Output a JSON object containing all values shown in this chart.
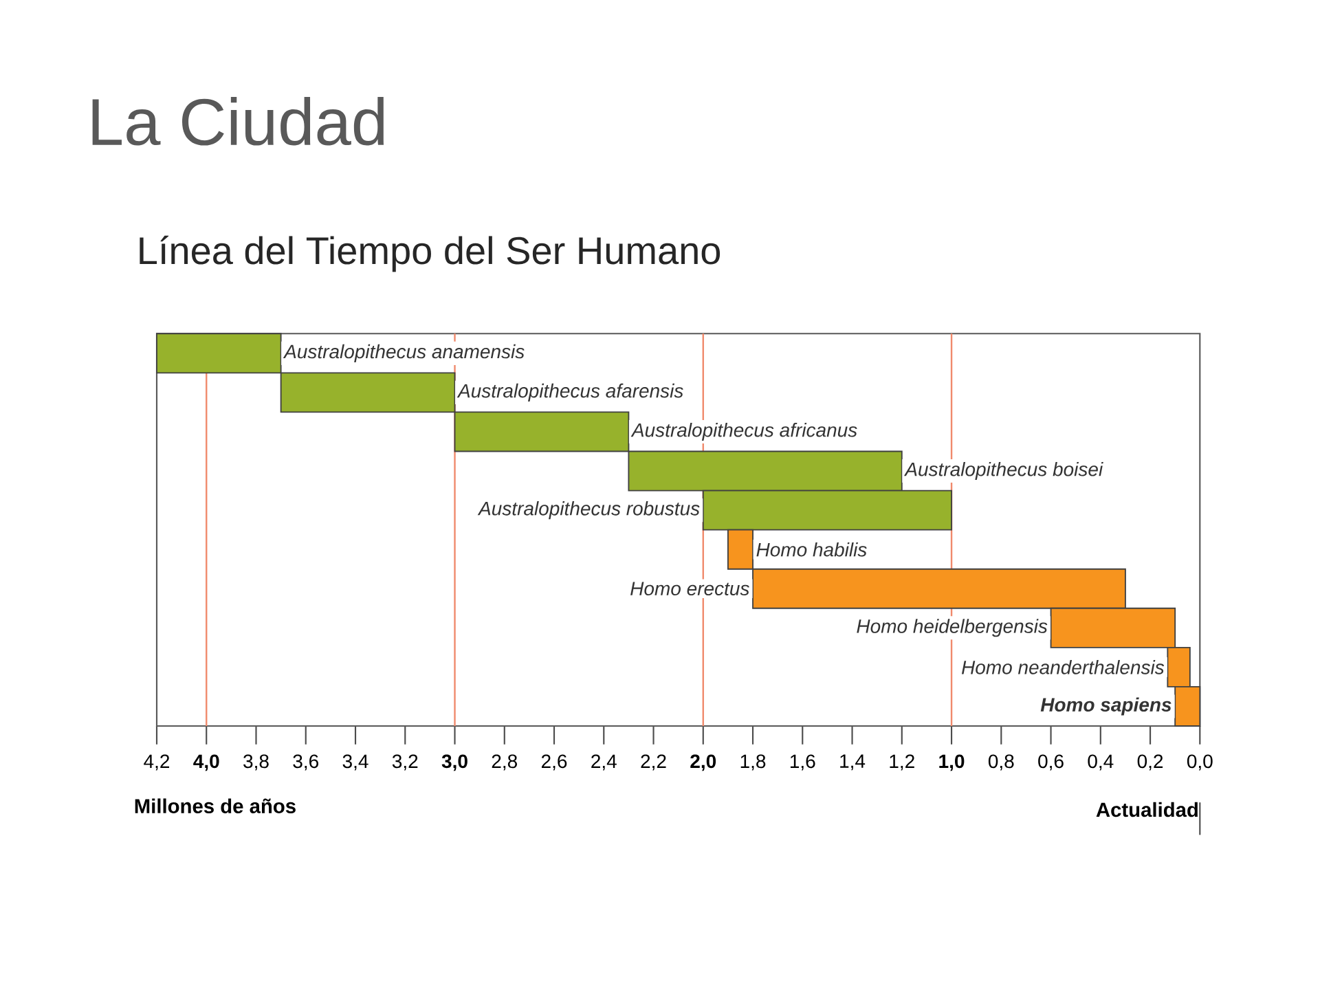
{
  "chart_data": {
    "type": "bar",
    "orientation": "horizontal",
    "title": "La Ciudad",
    "subtitle": "Línea del Tiempo del Ser Humano",
    "categories": [
      "Australopithecus anamensis",
      "Australopithecus afarensis",
      "Australopithecus africanus",
      "Australopithecus boisei",
      "Australopithecus robustus",
      "Homo habilis",
      "Homo erectus",
      "Homo heidelbergensis",
      "Homo neanderthalensis",
      "**Homo sapiens**"
    ],
    "base": [
      3.7,
      3.0,
      2.3,
      1.2,
      1.0,
      1.8,
      0.3,
      0.1,
      0.04,
      0.0
    ],
    "values": [
      0.5,
      0.7,
      0.7,
      1.1,
      1.0,
      0.1,
      1.5,
      0.5,
      0.09,
      0.1
    ],
    "colors": [
      "#97b22c",
      "#97b22c",
      "#97b22c",
      "#97b22c",
      "#97b22c",
      "#f7941e",
      "#f7941e",
      "#f7941e",
      "#f7941e",
      "#f7941e"
    ],
    "xlim": [
      4.2,
      0.0
    ],
    "xticks": [
      {
        "value": 4.2,
        "label": "4,2"
      },
      {
        "value": 4.0,
        "label": "**4,0**"
      },
      {
        "value": 3.8,
        "label": "3,8"
      },
      {
        "value": 3.6,
        "label": "3,6"
      },
      {
        "value": 3.4,
        "label": "3,4"
      },
      {
        "value": 3.2,
        "label": "3,2"
      },
      {
        "value": 3.0,
        "label": "**3,0**"
      },
      {
        "value": 2.8,
        "label": "2,8"
      },
      {
        "value": 2.6,
        "label": "2,6"
      },
      {
        "value": 2.4,
        "label": "2,4"
      },
      {
        "value": 2.2,
        "label": "2,2"
      },
      {
        "value": 2.0,
        "label": "**2,0**"
      },
      {
        "value": 1.8,
        "label": "1,8"
      },
      {
        "value": 1.6,
        "label": "1,6"
      },
      {
        "value": 1.4,
        "label": "1,4"
      },
      {
        "value": 1.2,
        "label": "1,2"
      },
      {
        "value": 1.0,
        "label": "**1,0**"
      },
      {
        "value": 0.8,
        "label": "0,8"
      },
      {
        "value": 0.6,
        "label": "0,6"
      },
      {
        "value": 0.4,
        "label": "0,4"
      },
      {
        "value": 0.2,
        "label": "0,2"
      },
      {
        "value": 0.0,
        "label": "0,0"
      }
    ],
    "xlabel": "Millones de años",
    "annotations": [
      "Actualidad"
    ],
    "ref_lines": [
      {
        "axis": "x",
        "value": 4.0,
        "color": "#f08a6c"
      },
      {
        "axis": "x",
        "value": 3.0,
        "color": "#f08a6c"
      },
      {
        "axis": "x",
        "value": 2.0,
        "color": "#f08a6c"
      },
      {
        "axis": "x",
        "value": 1.0,
        "color": "#f08a6c"
      }
    ]
  }
}
